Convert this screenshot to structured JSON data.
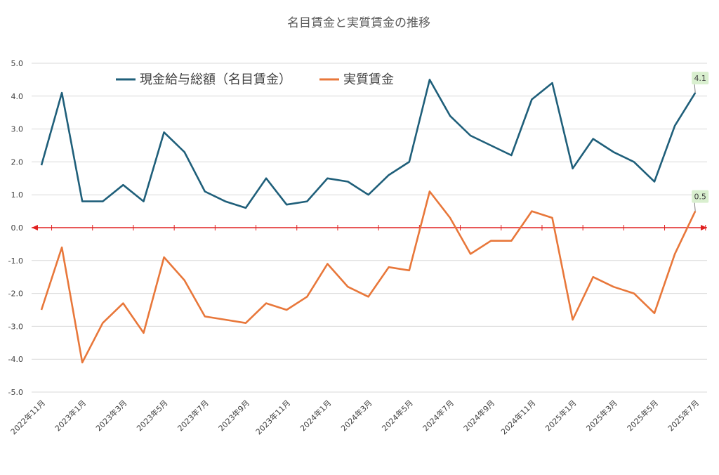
{
  "chart_data": {
    "type": "line",
    "title": "名目賃金と実質賃金の推移",
    "xlabel": "",
    "ylabel": "",
    "ylim": [
      -5.0,
      5.0
    ],
    "y_ticks": [
      "5.0",
      "4.0",
      "3.0",
      "2.0",
      "1.0",
      "0.0",
      "-1.0",
      "-2.0",
      "-3.0",
      "-4.0",
      "-5.0"
    ],
    "grid": true,
    "legend_position": "top",
    "x_tick_labels": [
      "2022年11月",
      "2023年1月",
      "2023年3月",
      "2023年5月",
      "2023年7月",
      "2023年9月",
      "2023年11月",
      "2024年1月",
      "2024年3月",
      "2024年5月",
      "2024年7月",
      "2024年9月",
      "2024年11月",
      "2025年1月",
      "2025年3月",
      "2025年5月",
      "2025年7月"
    ],
    "series": [
      {
        "name": "現金給与総額（名目賃金）",
        "color": "#1f5f7a",
        "values": [
          1.9,
          4.1,
          0.8,
          0.8,
          1.3,
          0.8,
          2.9,
          2.3,
          1.1,
          0.8,
          0.6,
          1.5,
          0.7,
          0.8,
          1.5,
          1.4,
          1.0,
          1.6,
          2.0,
          4.5,
          3.4,
          2.8,
          2.5,
          2.2,
          3.9,
          4.4,
          1.8,
          2.7,
          2.3,
          2.0,
          1.4,
          3.1,
          4.1
        ]
      },
      {
        "name": "実質賃金",
        "color": "#e8773a",
        "values": [
          -2.5,
          -0.6,
          -4.1,
          -2.9,
          -2.3,
          -3.2,
          -0.9,
          -1.6,
          -2.7,
          -2.8,
          -2.9,
          -2.3,
          -2.5,
          -2.1,
          -1.1,
          -1.8,
          -2.1,
          -1.2,
          -1.3,
          1.1,
          0.3,
          -0.8,
          -0.4,
          -0.4,
          0.5,
          0.3,
          -2.8,
          -1.5,
          -1.8,
          -2.0,
          -2.6,
          -0.8,
          0.5
        ]
      }
    ],
    "annotations": [
      {
        "text": "4.1",
        "series": 0,
        "point": 32
      },
      {
        "text": "0.5",
        "series": 1,
        "point": 32
      }
    ],
    "zero_axis_color": "#e02020",
    "callout_fill": "#d9efcf"
  }
}
